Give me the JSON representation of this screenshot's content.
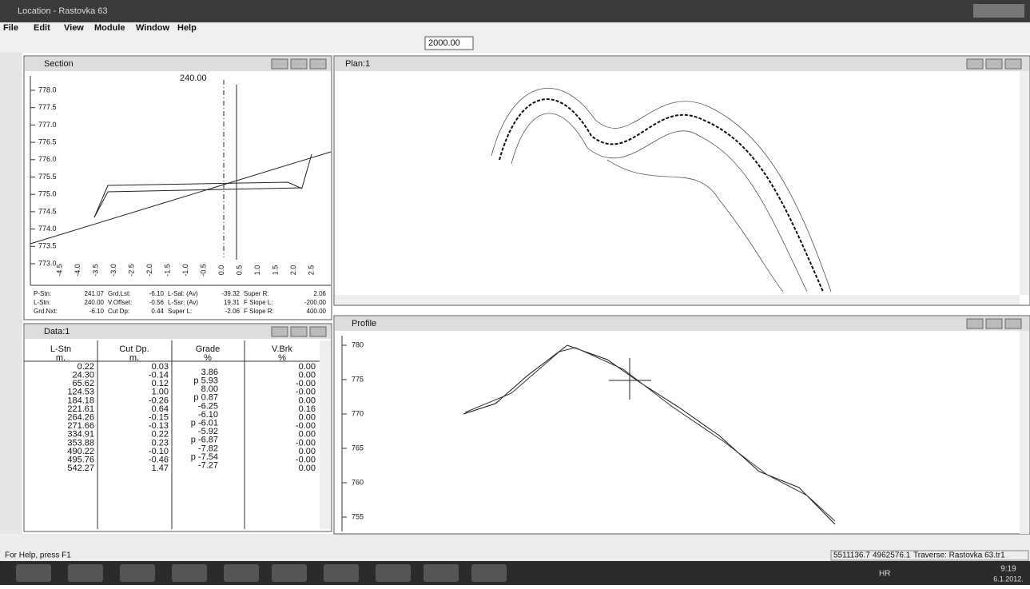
{
  "window": {
    "title": "Location - Rastovka 63"
  },
  "menu": [
    "File",
    "Edit",
    "View",
    "Module",
    "Window",
    "Help"
  ],
  "toolbar": {
    "scale": "2000.00"
  },
  "section": {
    "title": "Section",
    "station": "240.00",
    "yticks": [
      "778.0",
      "777.5",
      "777.0",
      "776.5",
      "776.0",
      "775.5",
      "775.0",
      "774.5",
      "774.0",
      "773.5",
      "773.0"
    ],
    "xticks": [
      "-4.5",
      "-4.0",
      "-3.5",
      "-3.0",
      "-2.5",
      "-2.0",
      "-1.5",
      "-1.0",
      "-0.5",
      "0.0",
      "0.5",
      "1.0",
      "1.5",
      "2.0",
      "2.5"
    ],
    "info": [
      [
        "P-Stn:",
        "241.07",
        "Grd.Lst:",
        "-6.10",
        "L-Sal: (Av)",
        "-39.32",
        "Super R:",
        "2.06"
      ],
      [
        "L-Stn:",
        "240.00",
        "V.Offset:",
        "-0.56",
        "L-Ssr: (Av)",
        "19.31",
        "F Slope L:",
        "-200.00"
      ],
      [
        "Grd.Nxt:",
        "-6.10",
        "Cut Dp:",
        "0.44",
        "Super L:",
        "-2.06",
        "F Slope R:",
        "400.00"
      ]
    ]
  },
  "data_window": {
    "title": "Data:1",
    "headers": [
      "L-Stn",
      "Cut Dp.",
      "Grade",
      "V.Brk"
    ],
    "units": [
      "m.",
      "m.",
      "%",
      "%"
    ],
    "l_stn": [
      "0.22",
      "24.30",
      "65.62",
      "124.53",
      "184.18",
      "221.61",
      "264.26",
      "271.66",
      "334.91",
      "353.88",
      "490.22",
      "495.76",
      "542.27"
    ],
    "cut_dp": [
      "0.03",
      "-0.14",
      "0.12",
      "1.00",
      "-0.26",
      "0.64",
      "-0.15",
      "-0.13",
      "0.22",
      "0.23",
      "-0.10",
      "-0.46",
      "1.47"
    ],
    "grade": [
      "3.86",
      "p 5.93",
      "8.00",
      "p 0.87",
      "-6.25",
      "-6.10",
      "p -6.01",
      "-5.92",
      "p -6.87",
      "-7.82",
      "p -7.54",
      "-7.27"
    ],
    "v_brk": [
      "0.00",
      "0.00",
      "-0.00",
      "-0.00",
      "0.00",
      "0.16",
      "0.00",
      "-0.00",
      "0.00",
      "-0.00",
      "0.00",
      "-0.00",
      "0.00"
    ]
  },
  "plan": {
    "title": "Plan:1"
  },
  "profile": {
    "title": "Profile",
    "yticks": [
      "780",
      "775",
      "770",
      "765",
      "760",
      "755"
    ]
  },
  "status": {
    "help": "For Help, press F1",
    "x": "5511136.7",
    "y": "4962576.1",
    "traverse": "Traverse: Rastovka 63.tr1"
  },
  "taskbar": {
    "language": "HR",
    "time": "9:19",
    "date": "6.1.2012."
  }
}
